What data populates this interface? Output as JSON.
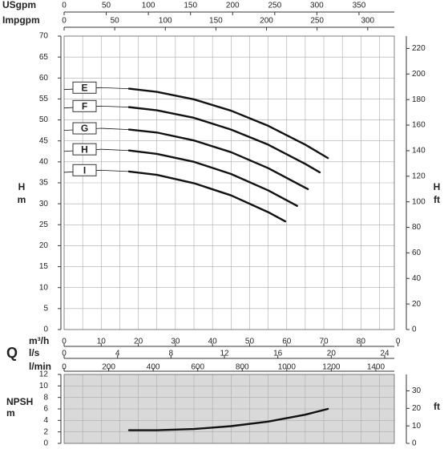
{
  "chart_data": [
    {
      "type": "line",
      "ylabel": "H",
      "yunit": "m",
      "y2label": "H",
      "y2unit": "ft",
      "xaxis_title": "Q",
      "xlim": [
        0,
        89
      ],
      "ylim": [
        0,
        70
      ],
      "yticks": [
        0,
        5,
        10,
        15,
        20,
        25,
        30,
        35,
        40,
        45,
        50,
        55,
        60,
        65,
        70
      ],
      "y2lim": [
        0,
        229.7
      ],
      "y2ticks": [
        0,
        20,
        40,
        60,
        80,
        100,
        120,
        140,
        160,
        180,
        200,
        220
      ],
      "grid": true,
      "xgrid": [
        5,
        10,
        15,
        20,
        25,
        30,
        35,
        40,
        45,
        50,
        55,
        60,
        65,
        70,
        75,
        80,
        85
      ],
      "xaxes": [
        {
          "label": "USgpm",
          "xlim": [
            0,
            391.9
          ],
          "xticks": [
            0,
            50,
            100,
            150,
            200,
            250,
            300,
            350
          ]
        },
        {
          "label": "Impgpm",
          "xlim": [
            0,
            326.3
          ],
          "xticks": [
            0,
            50,
            100,
            150,
            200,
            250,
            300
          ]
        },
        {
          "label": "m³/h",
          "xlim": [
            0,
            89
          ],
          "xticks": [
            0,
            10,
            20,
            30,
            40,
            50,
            60,
            70,
            80,
            {
              "value": 90,
              "label": "0"
            }
          ]
        },
        {
          "label": "l/s",
          "xlim": [
            0,
            24.72
          ],
          "xticks": [
            0,
            4,
            8,
            12,
            16,
            20,
            24
          ]
        },
        {
          "label": "l/min",
          "xlim": [
            0,
            1483
          ],
          "xticks": [
            0,
            200,
            400,
            600,
            800,
            1000,
            1200,
            1400
          ]
        }
      ],
      "color": "#111",
      "series": [
        {
          "name": "E",
          "operating_range": [
            17.5,
            71.1
          ],
          "x": [
            0,
            10,
            17.5,
            25,
            35,
            45,
            55,
            65,
            71.1
          ],
          "values": [
            57.25,
            57.7,
            57.45,
            56.7,
            54.9,
            52.2,
            48.6,
            44.1,
            40.9
          ]
        },
        {
          "name": "F",
          "operating_range": [
            17.5,
            68.9
          ],
          "x": [
            0,
            10,
            17.5,
            25,
            35,
            45,
            55,
            65,
            68.9
          ],
          "values": [
            52.85,
            53.3,
            53.05,
            52.3,
            50.5,
            47.7,
            44.1,
            39.5,
            37.5
          ]
        },
        {
          "name": "G",
          "operating_range": [
            17.5,
            65.7
          ],
          "x": [
            0,
            10,
            17.5,
            25,
            35,
            45,
            55,
            65.7
          ],
          "values": [
            47.5,
            48,
            47.7,
            47.0,
            45.1,
            42.3,
            38.5,
            33.5
          ]
        },
        {
          "name": "H",
          "operating_range": [
            17.5,
            62.8
          ],
          "x": [
            0,
            10,
            17.5,
            25,
            35,
            45,
            55,
            62.8
          ],
          "values": [
            42.5,
            43,
            42.7,
            41.9,
            40.0,
            37.1,
            33.2,
            29.5
          ]
        },
        {
          "name": "I",
          "operating_range": [
            17.5,
            59.6
          ],
          "x": [
            0,
            10,
            17.5,
            25,
            35,
            45,
            55,
            59.6
          ],
          "values": [
            37.5,
            38,
            37.7,
            36.9,
            34.9,
            32.0,
            28.0,
            25.8
          ]
        }
      ]
    },
    {
      "type": "line",
      "ylabel": "NPSH",
      "yunit": "m",
      "y2unit": "ft",
      "xlim": [
        0,
        89
      ],
      "ylim": [
        0,
        12
      ],
      "yticks": [
        0,
        2,
        4,
        6,
        8,
        10,
        12
      ],
      "y2lim": [
        0,
        39.37
      ],
      "y2ticks": [
        0,
        10,
        20,
        30
      ],
      "grid": true,
      "background": "#d9d9d9",
      "xgrid": [
        5,
        10,
        15,
        20,
        25,
        30,
        35,
        40,
        45,
        50,
        55,
        60,
        65,
        70,
        75,
        80,
        85
      ],
      "color": "#111",
      "series": [
        {
          "x": [
            17.5,
            25,
            35,
            45,
            55,
            65,
            71.1
          ],
          "values": [
            2.3,
            2.3,
            2.5,
            3.0,
            3.8,
            5.0,
            6.0
          ]
        }
      ]
    }
  ]
}
